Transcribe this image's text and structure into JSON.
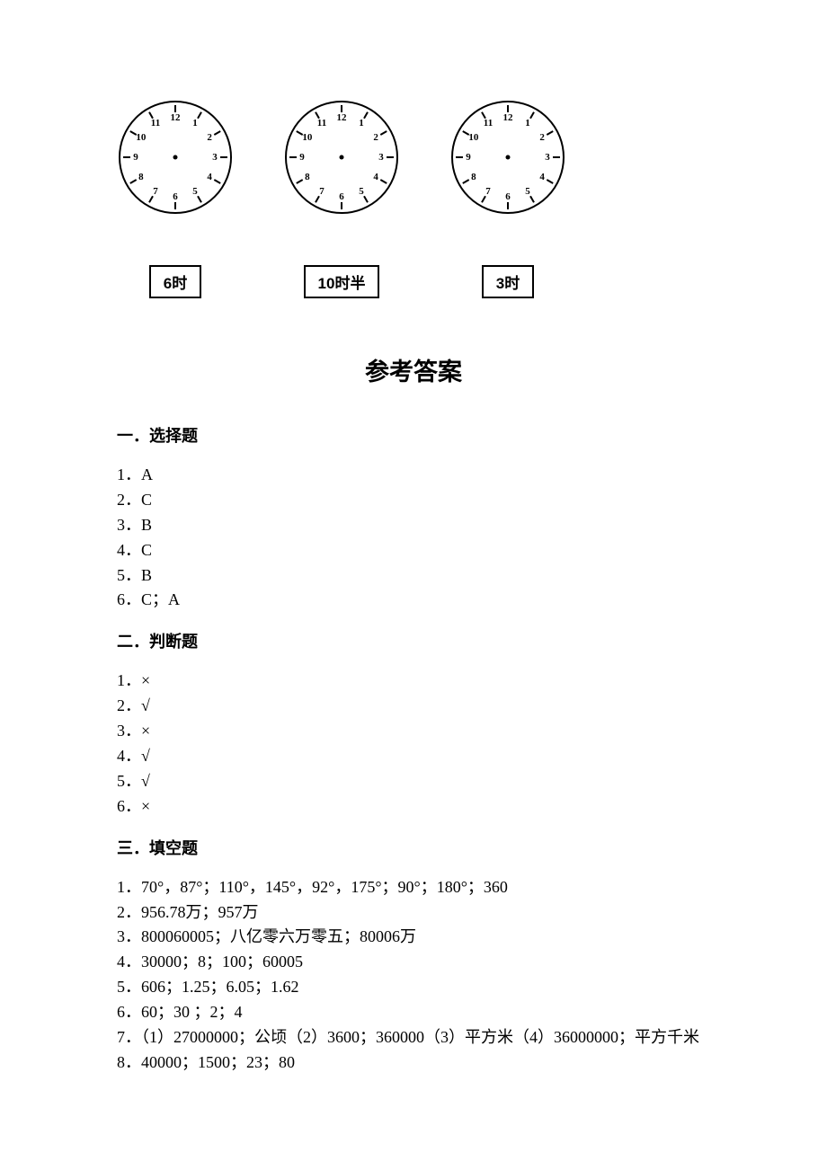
{
  "clocks": {
    "face_radius": 62,
    "stroke_color": "#000000",
    "outer_stroke_width": 2,
    "tick_inner_r": 50,
    "tick_outer_r": 58,
    "tick_width": 2,
    "number_r": 44,
    "number_fontsize": 11,
    "center_dot_r": 2.5,
    "labels": [
      "6时",
      "10时半",
      "3时"
    ]
  },
  "answers_title": "参考答案",
  "sections": [
    {
      "heading": "一．选择题",
      "items": [
        "1．A",
        "2．C",
        "3．B",
        "4．C",
        "5．B",
        "6．C；A"
      ]
    },
    {
      "heading": "二．判断题",
      "items": [
        "1．×",
        "2．√",
        "3．×",
        "4．√",
        "5．√",
        "6．×"
      ]
    },
    {
      "heading": "三．填空题",
      "items": [
        "1．70°，87°；110°，145°，92°，175°；90°；180°；360",
        "2．956.78万；957万",
        "3．800060005；八亿零六万零五；80006万",
        "4．30000；8；100；60005",
        "5．606；1.25；6.05；1.62",
        "6．60；30 ；2；4",
        "7．（1）27000000；公顷（2）3600；360000（3）平方米（4）36000000；平方千米",
        "8．40000；1500；23；80"
      ]
    }
  ]
}
